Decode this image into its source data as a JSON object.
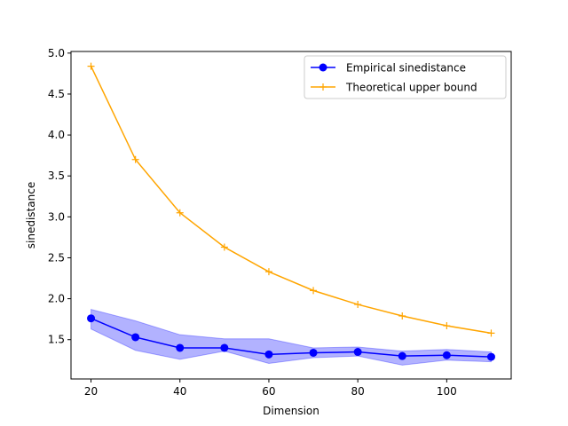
{
  "chart_data": {
    "type": "line",
    "title": "",
    "xlabel": "Dimension",
    "ylabel": "sinedistance",
    "xlim": [
      15.5,
      114.5
    ],
    "ylim": [
      1.02,
      5.02
    ],
    "xticks": [
      20,
      40,
      60,
      80,
      100
    ],
    "yticks": [
      1.5,
      2.0,
      2.5,
      3.0,
      3.5,
      4.0,
      4.5,
      5.0
    ],
    "ytick_labels": [
      "1.5",
      "2.0",
      "2.5",
      "3.0",
      "3.5",
      "4.0",
      "4.5",
      "5.0"
    ],
    "grid": false,
    "legend_position": "top-right",
    "x": [
      20,
      30,
      40,
      50,
      60,
      70,
      80,
      90,
      100,
      110
    ],
    "series": [
      {
        "name": "Empirical sinedistance",
        "color": "#0000ff",
        "marker": "circle",
        "values": [
          1.76,
          1.53,
          1.4,
          1.4,
          1.32,
          1.34,
          1.35,
          1.3,
          1.31,
          1.29
        ],
        "band_lower": [
          1.63,
          1.37,
          1.26,
          1.36,
          1.21,
          1.28,
          1.3,
          1.19,
          1.25,
          1.23
        ],
        "band_upper": [
          1.87,
          1.73,
          1.56,
          1.51,
          1.51,
          1.4,
          1.41,
          1.36,
          1.38,
          1.35
        ],
        "band_color": "#0000ff"
      },
      {
        "name": "Theoretical upper bound",
        "color": "#ffa500",
        "marker": "plus",
        "values": [
          4.84,
          3.7,
          3.05,
          2.63,
          2.33,
          2.1,
          1.93,
          1.79,
          1.67,
          1.58
        ]
      }
    ]
  }
}
